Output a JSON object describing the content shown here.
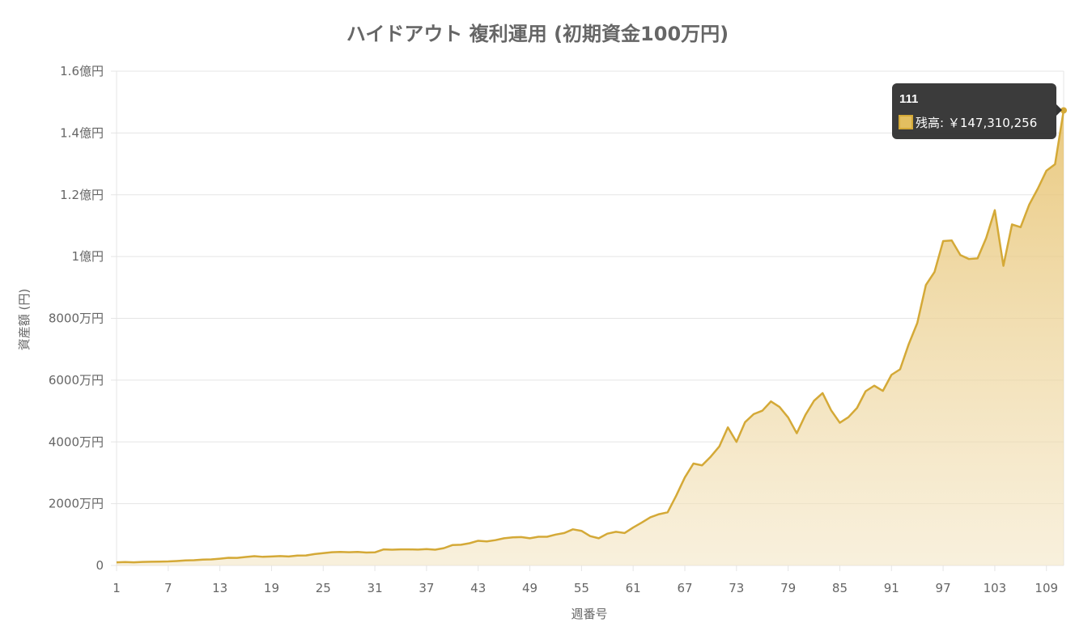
{
  "chart_data": {
    "type": "area",
    "title": "ハイドアウト 複利運用 (初期資金100万円)",
    "xlabel": "週番号",
    "ylabel": "資産額 (円)",
    "ylim": [
      0,
      160000000
    ],
    "y_ticks": [
      {
        "value": 0,
        "label": "0"
      },
      {
        "value": 20000000,
        "label": "2000万円"
      },
      {
        "value": 40000000,
        "label": "4000万円"
      },
      {
        "value": 60000000,
        "label": "6000万円"
      },
      {
        "value": 80000000,
        "label": "8000万円"
      },
      {
        "value": 100000000,
        "label": "1億円"
      },
      {
        "value": 120000000,
        "label": "1.2億円"
      },
      {
        "value": 140000000,
        "label": "1.4億円"
      },
      {
        "value": 160000000,
        "label": "1.6億円"
      }
    ],
    "x_tick_labels": [
      "1",
      "7",
      "13",
      "19",
      "25",
      "31",
      "37",
      "43",
      "49",
      "55",
      "61",
      "67",
      "73",
      "79",
      "85",
      "91",
      "97",
      "103",
      "109"
    ],
    "grid": true,
    "series": [
      {
        "name": "残高",
        "color": "#d4a937",
        "x_start": 1,
        "values": [
          1000000,
          1100000,
          1000000,
          1150000,
          1200000,
          1250000,
          1300000,
          1450000,
          1650000,
          1700000,
          1900000,
          1950000,
          2200000,
          2500000,
          2450000,
          2750000,
          3000000,
          2800000,
          2900000,
          3050000,
          2900000,
          3200000,
          3250000,
          3700000,
          4000000,
          4300000,
          4400000,
          4300000,
          4400000,
          4200000,
          4250000,
          5200000,
          5100000,
          5200000,
          5200000,
          5150000,
          5300000,
          5100000,
          5600000,
          6600000,
          6700000,
          7200000,
          8000000,
          7800000,
          8200000,
          8800000,
          9100000,
          9200000,
          8800000,
          9300000,
          9300000,
          10000000,
          10500000,
          11700000,
          11200000,
          9500000,
          8800000,
          10300000,
          10900000,
          10500000,
          12300000,
          13900000,
          15600000,
          16600000,
          17200000,
          22600000,
          28500000,
          33000000,
          32400000,
          35200000,
          38500000,
          44700000,
          40000000,
          46400000,
          49000000,
          50100000,
          53100000,
          51300000,
          47900000,
          42800000,
          48700000,
          53300000,
          55800000,
          50200000,
          46200000,
          48000000,
          51000000,
          56400000,
          58200000,
          56500000,
          61700000,
          63500000,
          71600000,
          78500000,
          90800000,
          95000000,
          105000000,
          105200000,
          100500000,
          99200000,
          99400000,
          106000000,
          115000000,
          97000000,
          110400000,
          109500000,
          116800000,
          122000000,
          127800000,
          129900000,
          147310256
        ]
      }
    ],
    "tooltip": {
      "title": "111",
      "label": "残高: ￥147,310,256"
    }
  }
}
